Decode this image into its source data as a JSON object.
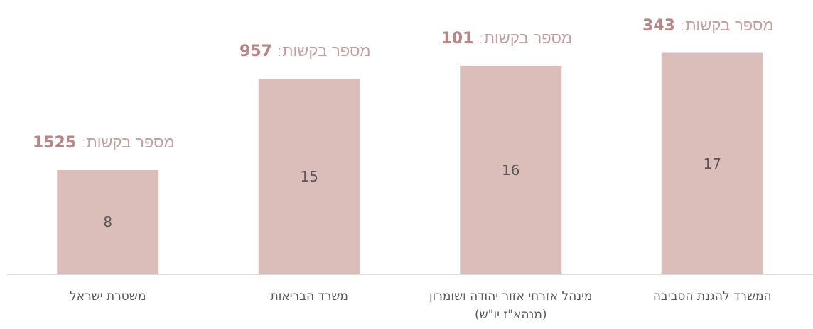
{
  "chart_data": {
    "type": "bar",
    "categories": [
      "משטרת ישראל",
      "משרד הבריאות",
      "מינהל אזרחי אזור יהודה ושומרון (מנהא\"ז יו\"ש)",
      "המשרד להגנת הסביבה"
    ],
    "values": [
      8,
      15,
      16,
      17
    ],
    "color": "#dbbdb9",
    "ylim": [
      0,
      21
    ],
    "annotation_label": "מספר בקשות:",
    "request_counts": [
      1525,
      957,
      101,
      343
    ]
  }
}
